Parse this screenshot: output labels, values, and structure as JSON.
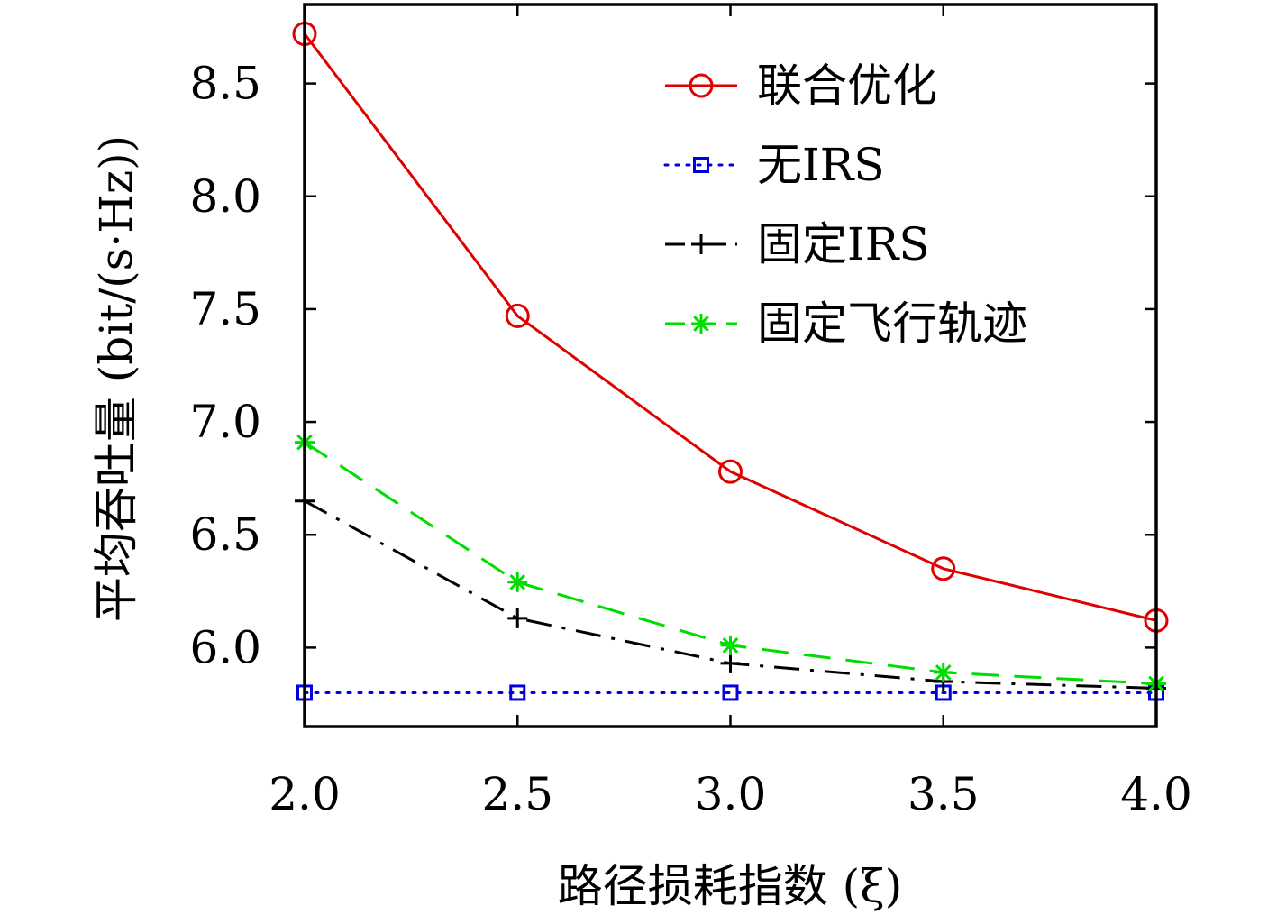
{
  "chart_data": {
    "type": "line",
    "xlabel": "路径损耗指数 (ξ)",
    "ylabel": "平均吞吐量 (bit/(s·Hz))",
    "x": [
      2.0,
      2.5,
      3.0,
      3.5,
      4.0
    ],
    "x_tick_labels": [
      "2.0",
      "2.5",
      "3.0",
      "3.5",
      "4.0"
    ],
    "y_ticks": [
      6.0,
      6.5,
      7.0,
      7.5,
      8.0,
      8.5
    ],
    "y_tick_labels": [
      "6.0",
      "6.5",
      "7.0",
      "7.5",
      "8.0",
      "8.5"
    ],
    "xlim": [
      2.0,
      4.0
    ],
    "ylim": [
      5.65,
      8.85
    ],
    "grid": false,
    "legend_position": "top-right",
    "series": [
      {
        "name": "联合优化",
        "values": [
          8.72,
          7.47,
          6.78,
          6.35,
          6.12
        ],
        "color": "#e00000",
        "dash": "solid",
        "marker": "circle"
      },
      {
        "name": "无IRS",
        "values": [
          5.8,
          5.8,
          5.8,
          5.8,
          5.8
        ],
        "color": "#0000e0",
        "dash": "dotted",
        "marker": "square"
      },
      {
        "name": "固定IRS",
        "values": [
          6.65,
          6.13,
          5.93,
          5.85,
          5.82
        ],
        "color": "#000000",
        "dash": "dashdot",
        "marker": "plus"
      },
      {
        "name": "固定飞行轨迹",
        "values": [
          6.91,
          6.29,
          6.01,
          5.89,
          5.84
        ],
        "color": "#00dd00",
        "dash": "dashed",
        "marker": "asterisk"
      }
    ]
  }
}
